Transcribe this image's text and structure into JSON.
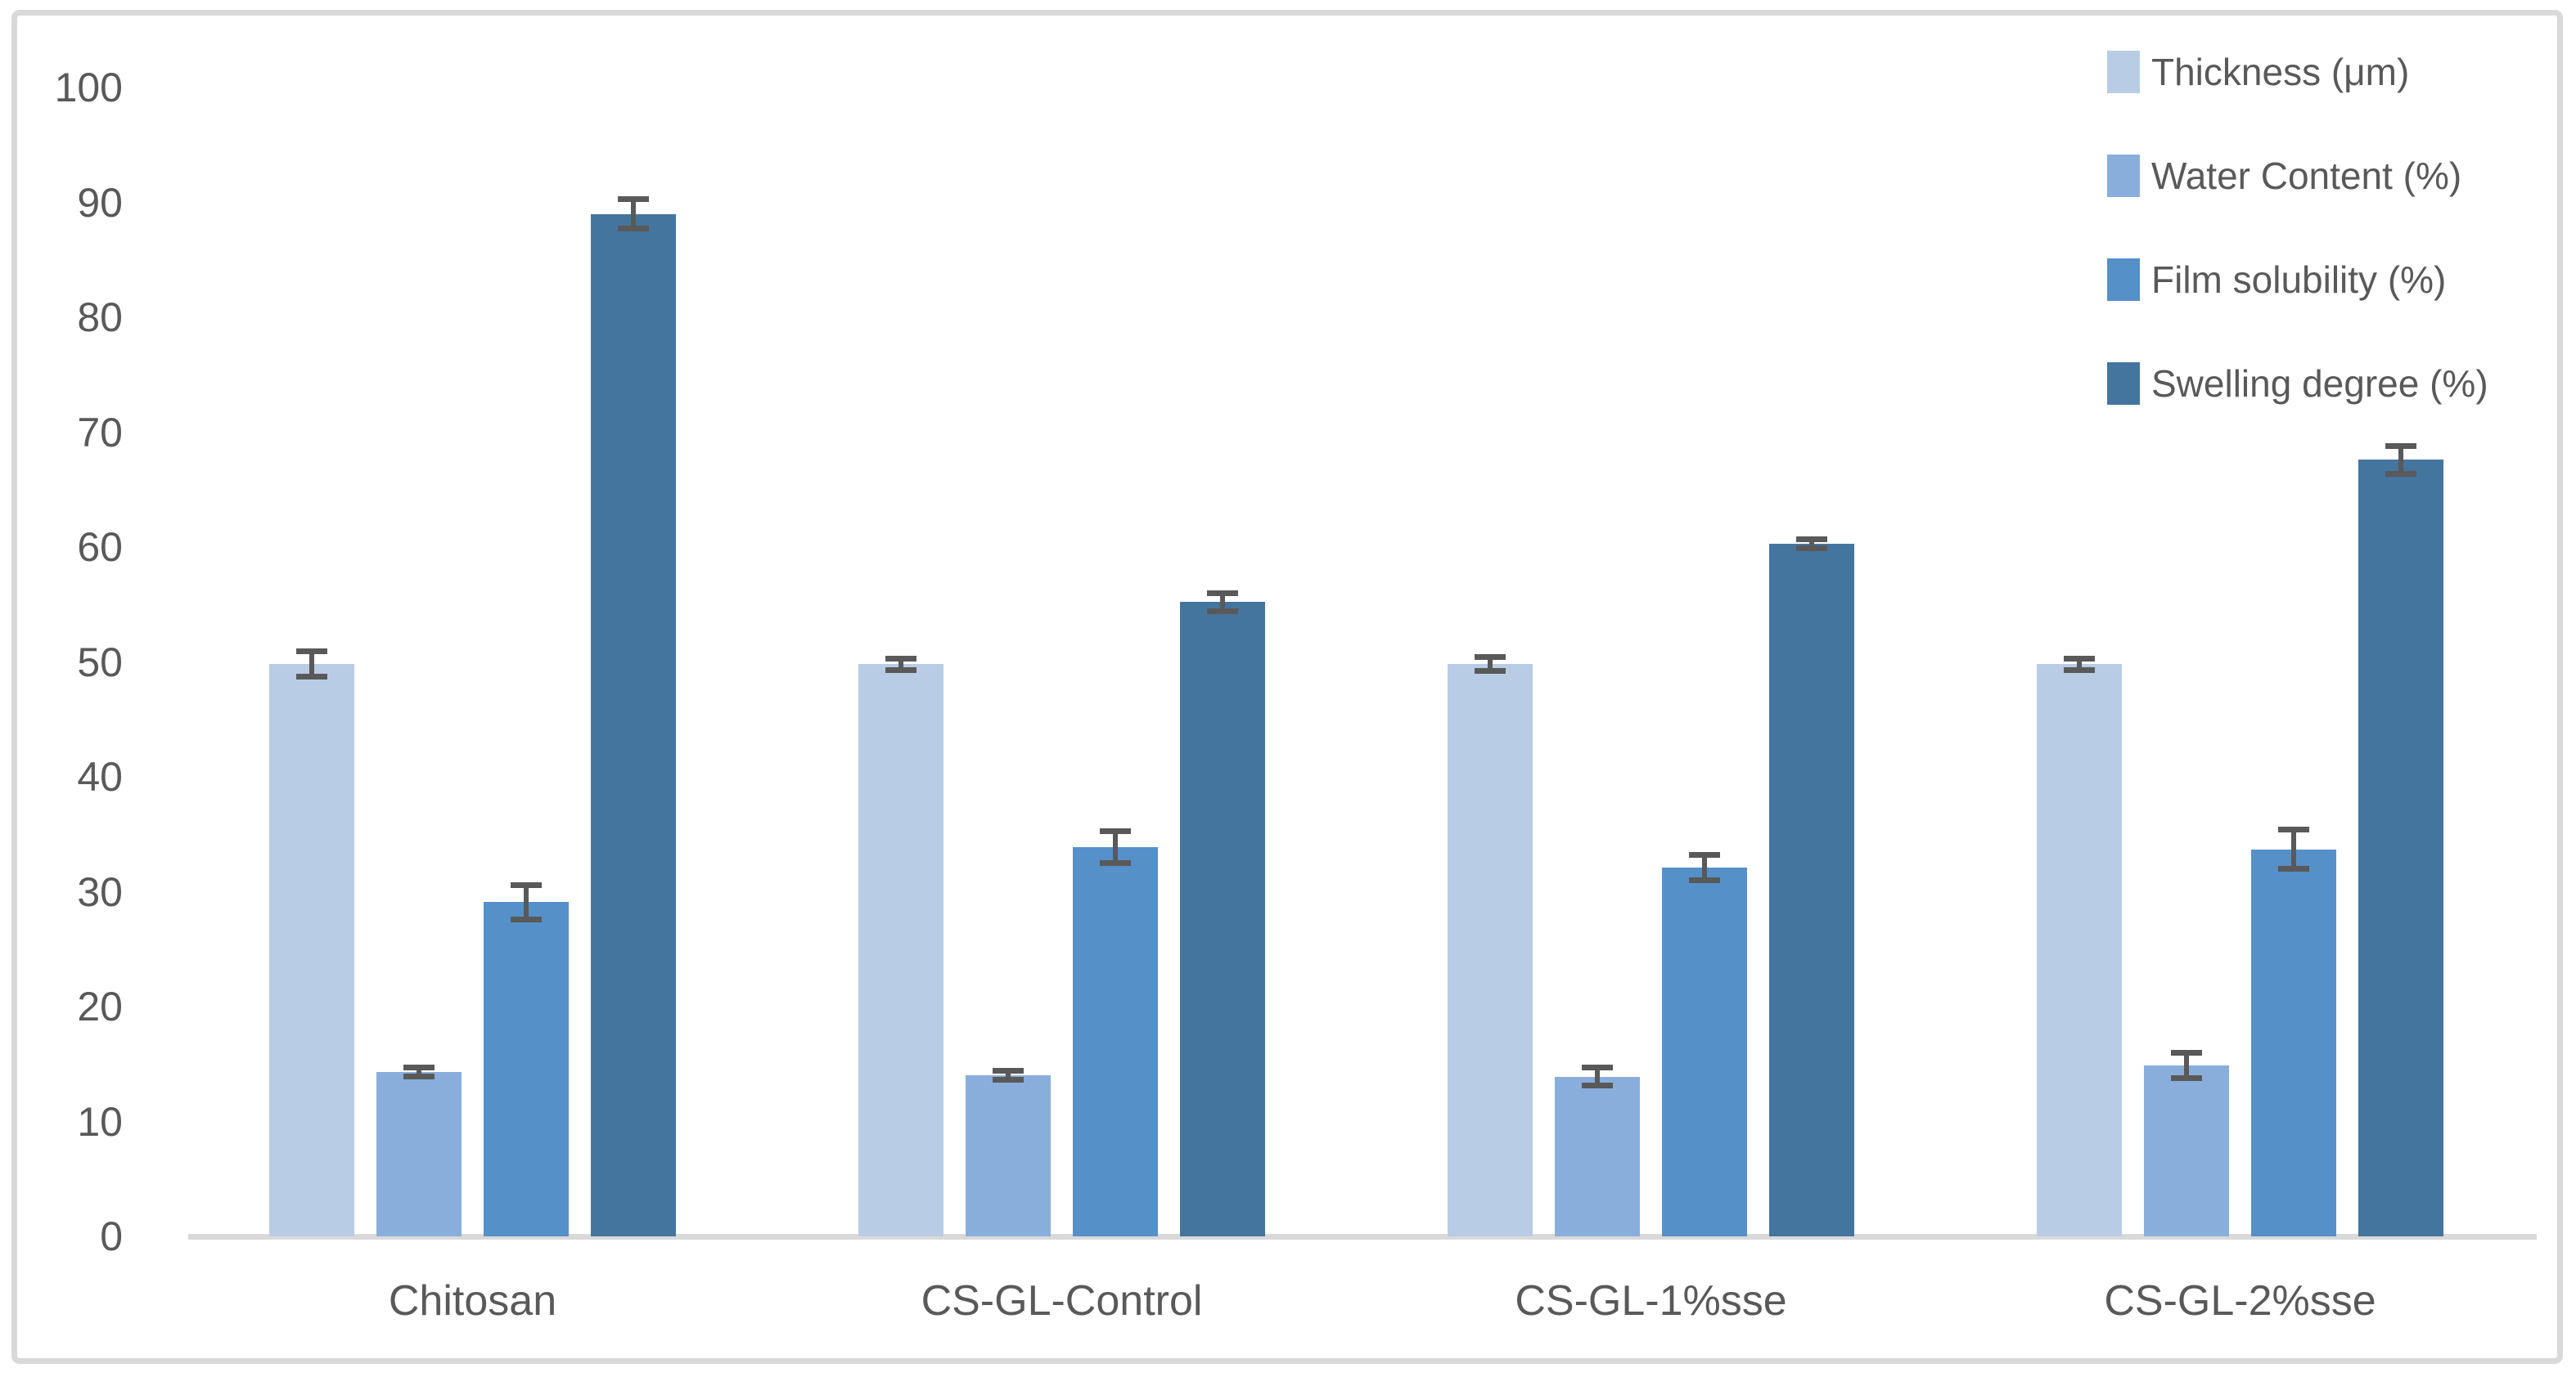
{
  "chart_data": {
    "type": "bar",
    "title": "",
    "xlabel": "",
    "ylabel": "",
    "ylim": [
      0,
      100
    ],
    "ytick_step": 10,
    "grid": false,
    "legend_position": "top-right",
    "categories": [
      "Chitosan",
      "CS-GL-Control",
      "CS-GL-1%sse",
      "CS-GL-2%sse"
    ],
    "series": [
      {
        "name": "Thickness (μm)",
        "color": "#B9CCE6",
        "values": [
          49.8,
          49.8,
          49.8,
          49.8
        ],
        "errors": [
          1.1,
          0.5,
          0.6,
          0.5
        ]
      },
      {
        "name": "Water Content (%)",
        "color": "#89AEDB",
        "values": [
          14.3,
          14.0,
          13.9,
          14.9
        ],
        "errors": [
          0.4,
          0.4,
          0.8,
          1.1
        ]
      },
      {
        "name": "Film solubility (%)",
        "color": "#5590C9",
        "values": [
          29.1,
          33.9,
          32.1,
          33.7
        ],
        "errors": [
          1.5,
          1.4,
          1.1,
          1.7
        ]
      },
      {
        "name": "Swelling degree (%)",
        "color": "#44759E",
        "values": [
          89.0,
          55.2,
          60.3,
          67.6
        ],
        "errors": [
          1.3,
          0.8,
          0.4,
          1.2
        ]
      }
    ],
    "error_bar_color": "#595959",
    "axis_text_color": "#595959",
    "baseline_color": "#D9D9D9",
    "frame_border_color": "#D9D9D9",
    "background_color": "#FFFFFF"
  }
}
